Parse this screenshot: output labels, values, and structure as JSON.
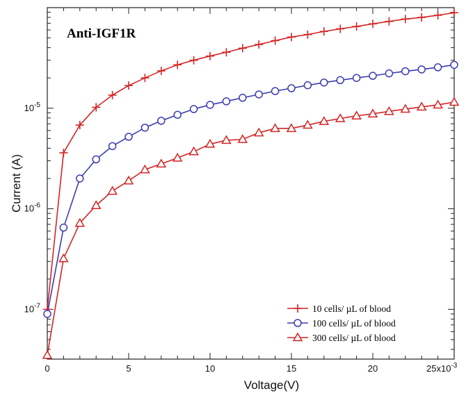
{
  "chart_data": {
    "type": "line",
    "title": "Anti-IGF1R",
    "xlabel": "Voltage(V)",
    "ylabel": "Current (A)",
    "x_scale": "linear",
    "x_multiplier_label": "x10",
    "x_multiplier_exponent": "-3",
    "y_scale": "log",
    "xlim": [
      0,
      25
    ],
    "ylim": [
      3.2e-08,
      0.0001
    ],
    "x_ticks": [
      {
        "value": 0,
        "label": "0"
      },
      {
        "value": 5,
        "label": "5"
      },
      {
        "value": 10,
        "label": "10"
      },
      {
        "value": 15,
        "label": "15"
      },
      {
        "value": 20,
        "label": "20"
      },
      {
        "value": 25,
        "label": "25"
      }
    ],
    "y_ticks": [
      {
        "value": 1e-07,
        "base": "10",
        "exp": "-7"
      },
      {
        "value": 1e-06,
        "base": "10",
        "exp": "-6"
      },
      {
        "value": 1e-05,
        "base": "10",
        "exp": "-5"
      }
    ],
    "grid": false,
    "legend_position": "bottom-right",
    "series": [
      {
        "name": "10  cells/ µL of blood",
        "color": "#d42424",
        "marker": "plus",
        "x": [
          0,
          1,
          2,
          3,
          4,
          5,
          6,
          7,
          8,
          9,
          10,
          11,
          12,
          13,
          14,
          15,
          16,
          17,
          18,
          19,
          20,
          21,
          22,
          23,
          24,
          25
        ],
        "y": [
          1e-07,
          3.6e-06,
          6.8e-06,
          1.02e-05,
          1.35e-05,
          1.68e-05,
          2e-05,
          2.35e-05,
          2.7e-05,
          3e-05,
          3.3e-05,
          3.6e-05,
          3.95e-05,
          4.3e-05,
          4.7e-05,
          5.1e-05,
          5.4e-05,
          5.8e-05,
          6.15e-05,
          6.5e-05,
          6.9e-05,
          7.3e-05,
          7.7e-05,
          8e-05,
          8.4e-05,
          8.9e-05
        ]
      },
      {
        "name": "100 cells/ µL of blood",
        "color": "#3b3bb0",
        "marker": "circle",
        "x": [
          0,
          1,
          2,
          3,
          4,
          5,
          6,
          7,
          8,
          9,
          10,
          11,
          12,
          13,
          14,
          15,
          16,
          17,
          18,
          19,
          20,
          21,
          22,
          23,
          24,
          25
        ],
        "y": [
          9e-08,
          6.5e-07,
          2e-06,
          3.1e-06,
          4.2e-06,
          5.2e-06,
          6.4e-06,
          7.5e-06,
          8.6e-06,
          9.8e-06,
          1.08e-05,
          1.17e-05,
          1.27e-05,
          1.37e-05,
          1.48e-05,
          1.58e-05,
          1.69e-05,
          1.8e-05,
          1.9e-05,
          2e-05,
          2.1e-05,
          2.22e-05,
          2.33e-05,
          2.43e-05,
          2.55e-05,
          2.7e-05
        ]
      },
      {
        "name": "300 cells/ µL of blood",
        "color": "#d42424",
        "marker": "triangle",
        "x": [
          0,
          1,
          2,
          3,
          4,
          5,
          6,
          7,
          8,
          9,
          10,
          11,
          12,
          13,
          14,
          15,
          16,
          17,
          18,
          19,
          20,
          21,
          22,
          23,
          24,
          25
        ],
        "y": [
          3.5e-08,
          3.2e-07,
          7.2e-07,
          1.08e-06,
          1.5e-06,
          1.9e-06,
          2.45e-06,
          2.8e-06,
          3.2e-06,
          3.7e-06,
          4.4e-06,
          4.8e-06,
          4.9e-06,
          5.7e-06,
          6.3e-06,
          6.3e-06,
          6.8e-06,
          7.4e-06,
          7.9e-06,
          8.4e-06,
          8.8e-06,
          9.3e-06,
          9.8e-06,
          1.03e-05,
          1.08e-05,
          1.15e-05
        ]
      }
    ]
  }
}
